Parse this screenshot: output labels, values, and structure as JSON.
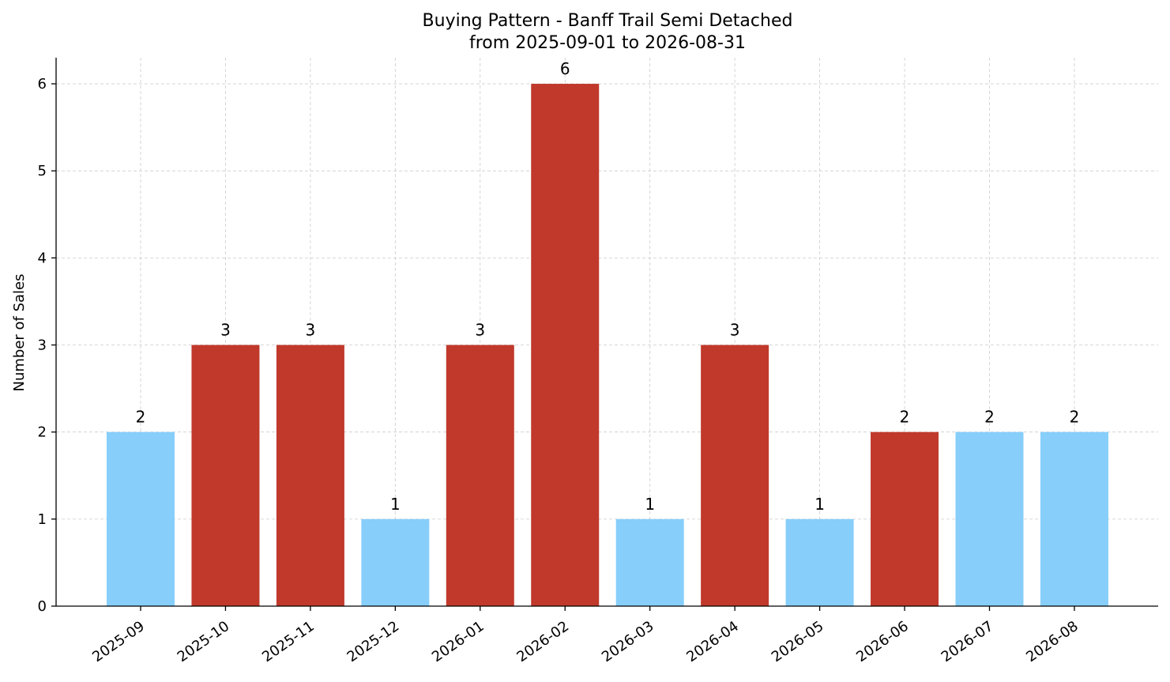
{
  "chart_data": {
    "type": "bar",
    "title": "Buying Pattern - Banff Trail Semi Detached",
    "subtitle": "from 2025-09-01 to 2026-08-31",
    "xlabel": "",
    "ylabel": "Number of Sales",
    "categories": [
      "2025-09",
      "2025-10",
      "2025-11",
      "2025-12",
      "2026-01",
      "2026-02",
      "2026-03",
      "2026-04",
      "2026-05",
      "2026-06",
      "2026-07",
      "2026-08"
    ],
    "values": [
      2,
      3,
      3,
      1,
      3,
      6,
      1,
      3,
      1,
      2,
      2,
      2
    ],
    "bar_groups": [
      "low",
      "high",
      "high",
      "low",
      "high",
      "high",
      "low",
      "high",
      "low",
      "high",
      "low",
      "low"
    ],
    "colors": {
      "high": "#c0392b",
      "low": "#87cefa"
    },
    "ylim": [
      0,
      6.3
    ],
    "yticks": [
      "0",
      "1",
      "2",
      "3",
      "4",
      "5",
      "6"
    ],
    "grid": true,
    "legend": "none"
  }
}
